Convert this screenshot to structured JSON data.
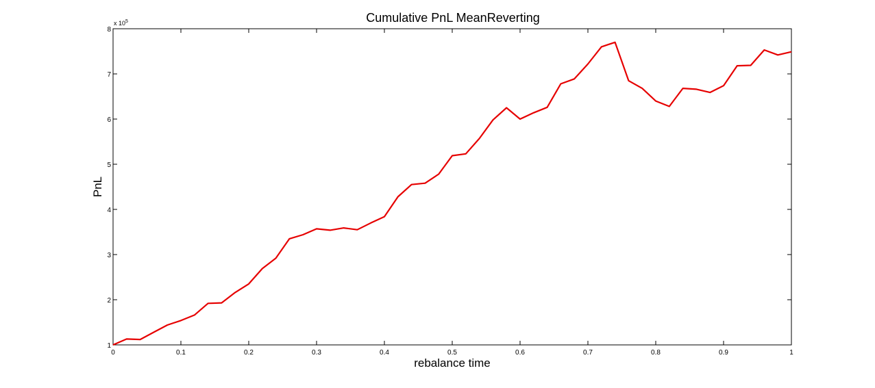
{
  "chart_data": {
    "type": "line",
    "title": "Cumulative PnL MeanReverting",
    "xlabel": "rebalance time",
    "ylabel": "PnL",
    "xlim": [
      0,
      1
    ],
    "ylim": [
      1,
      8
    ],
    "y_exponent_label": "x 10",
    "y_exponent_power": "5",
    "x_ticks": [
      0,
      0.1,
      0.2,
      0.3,
      0.4,
      0.5,
      0.6,
      0.7,
      0.8,
      0.9,
      1
    ],
    "x_tick_labels": [
      "0",
      "0.1",
      "0.2",
      "0.3",
      "0.4",
      "0.5",
      "0.6",
      "0.7",
      "0.8",
      "0.9",
      "1"
    ],
    "y_ticks": [
      1,
      2,
      3,
      4,
      5,
      6,
      7,
      8
    ],
    "y_tick_labels": [
      "1",
      "2",
      "3",
      "4",
      "5",
      "6",
      "7",
      "8"
    ],
    "grid": false,
    "series": [
      {
        "color": "#e60000",
        "x": [
          0,
          0.02,
          0.04,
          0.06,
          0.08,
          0.1,
          0.12,
          0.14,
          0.16,
          0.18,
          0.2,
          0.22,
          0.24,
          0.26,
          0.28,
          0.3,
          0.32,
          0.34,
          0.36,
          0.38,
          0.4,
          0.42,
          0.44,
          0.46,
          0.48,
          0.5,
          0.52,
          0.54,
          0.56,
          0.58,
          0.6,
          0.62,
          0.64,
          0.66,
          0.68,
          0.7,
          0.72,
          0.74,
          0.76,
          0.78,
          0.8,
          0.82,
          0.84,
          0.86,
          0.88,
          0.9,
          0.92,
          0.94,
          0.96,
          0.98,
          1.0
        ],
        "y": [
          1.0,
          1.13,
          1.12,
          1.28,
          1.44,
          1.54,
          1.66,
          1.92,
          1.93,
          2.16,
          2.35,
          2.69,
          2.92,
          3.35,
          3.44,
          3.57,
          3.54,
          3.59,
          3.55,
          3.7,
          3.84,
          4.28,
          4.55,
          4.58,
          4.78,
          5.19,
          5.23,
          5.57,
          5.98,
          6.25,
          6.0,
          6.14,
          6.26,
          6.78,
          6.89,
          7.22,
          7.6,
          7.7,
          6.85,
          6.68,
          6.4,
          6.28,
          6.68,
          6.66,
          6.59,
          6.74,
          7.18,
          7.19,
          7.53,
          7.42,
          7.49
        ]
      }
    ]
  }
}
